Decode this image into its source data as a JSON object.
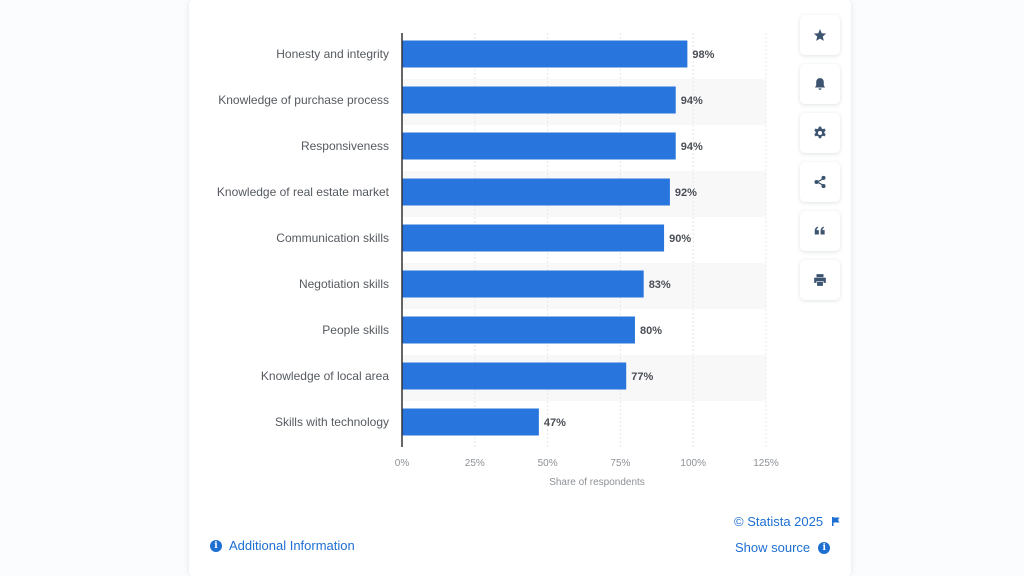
{
  "chart_data": {
    "type": "bar",
    "orientation": "horizontal",
    "categories": [
      "Honesty and integrity",
      "Knowledge of purchase process",
      "Responsiveness",
      "Knowledge of real estate market",
      "Communication skills",
      "Negotiation skills",
      "People skills",
      "Knowledge of local area",
      "Skills with technology"
    ],
    "values": [
      98,
      94,
      94,
      92,
      90,
      83,
      80,
      77,
      47
    ],
    "value_labels": [
      "98%",
      "94%",
      "94%",
      "92%",
      "90%",
      "83%",
      "80%",
      "77%",
      "47%"
    ],
    "title": "",
    "xlabel": "Share of respondents",
    "ylabel": "",
    "xlim": [
      0,
      125
    ],
    "x_ticks": [
      0,
      25,
      50,
      75,
      100,
      125
    ],
    "x_tick_labels": [
      "0%",
      "25%",
      "50%",
      "75%",
      "100%",
      "125%"
    ],
    "grid": true,
    "bar_color": "#2876dd"
  },
  "toolbar": {
    "buttons": [
      {
        "name": "favorite",
        "icon": "star-icon"
      },
      {
        "name": "notification",
        "icon": "bell-icon"
      },
      {
        "name": "settings",
        "icon": "gear-icon"
      },
      {
        "name": "share",
        "icon": "share-icon"
      },
      {
        "name": "cite",
        "icon": "quote-icon"
      },
      {
        "name": "print",
        "icon": "print-icon"
      }
    ]
  },
  "footer": {
    "copyright": "© Statista 2025",
    "additional_info": "Additional Information",
    "show_source": "Show source",
    "link_color": "#1e6fd2"
  }
}
